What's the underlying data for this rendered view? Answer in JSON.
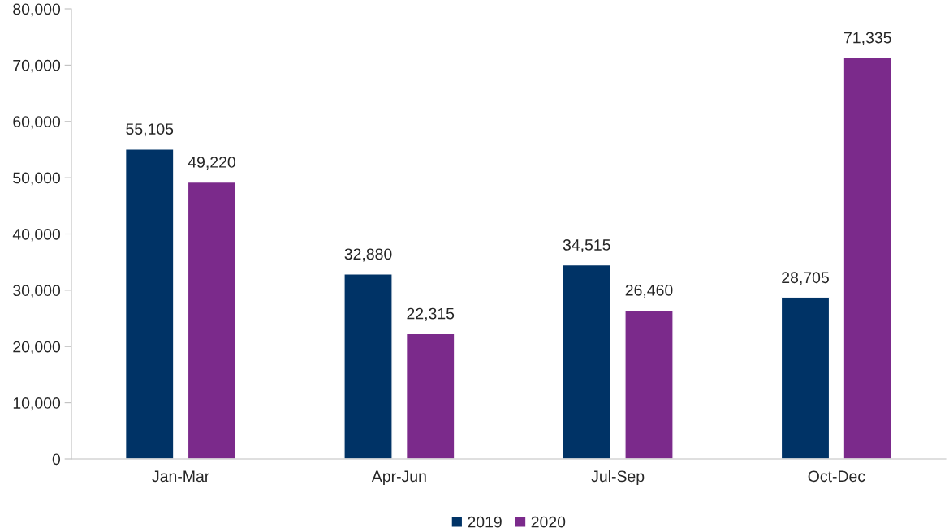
{
  "chart_data": {
    "type": "bar",
    "categories": [
      "Jan-Mar",
      "Apr-Jun",
      "Jul-Sep",
      "Oct-Dec"
    ],
    "series": [
      {
        "name": "2019",
        "color": "#003366",
        "values": [
          55105,
          32880,
          34515,
          28705
        ],
        "value_labels": [
          "55,105",
          "32,880",
          "34,515",
          "28,705"
        ]
      },
      {
        "name": "2020",
        "color": "#7b2a8b",
        "values": [
          49220,
          22315,
          26460,
          71335
        ],
        "value_labels": [
          "49,220",
          "22,315",
          "26,460",
          "71,335"
        ]
      }
    ],
    "ylim": [
      0,
      80000
    ],
    "yticks": [
      {
        "value": 0,
        "label": "0"
      },
      {
        "value": 10000,
        "label": "10,000"
      },
      {
        "value": 20000,
        "label": "20,000"
      },
      {
        "value": 30000,
        "label": "30,000"
      },
      {
        "value": 40000,
        "label": "40,000"
      },
      {
        "value": 50000,
        "label": "50,000"
      },
      {
        "value": 60000,
        "label": "60,000"
      },
      {
        "value": 70000,
        "label": "70,000"
      },
      {
        "value": 80000,
        "label": "80,000"
      }
    ],
    "grid": false,
    "legend": "bottom"
  }
}
